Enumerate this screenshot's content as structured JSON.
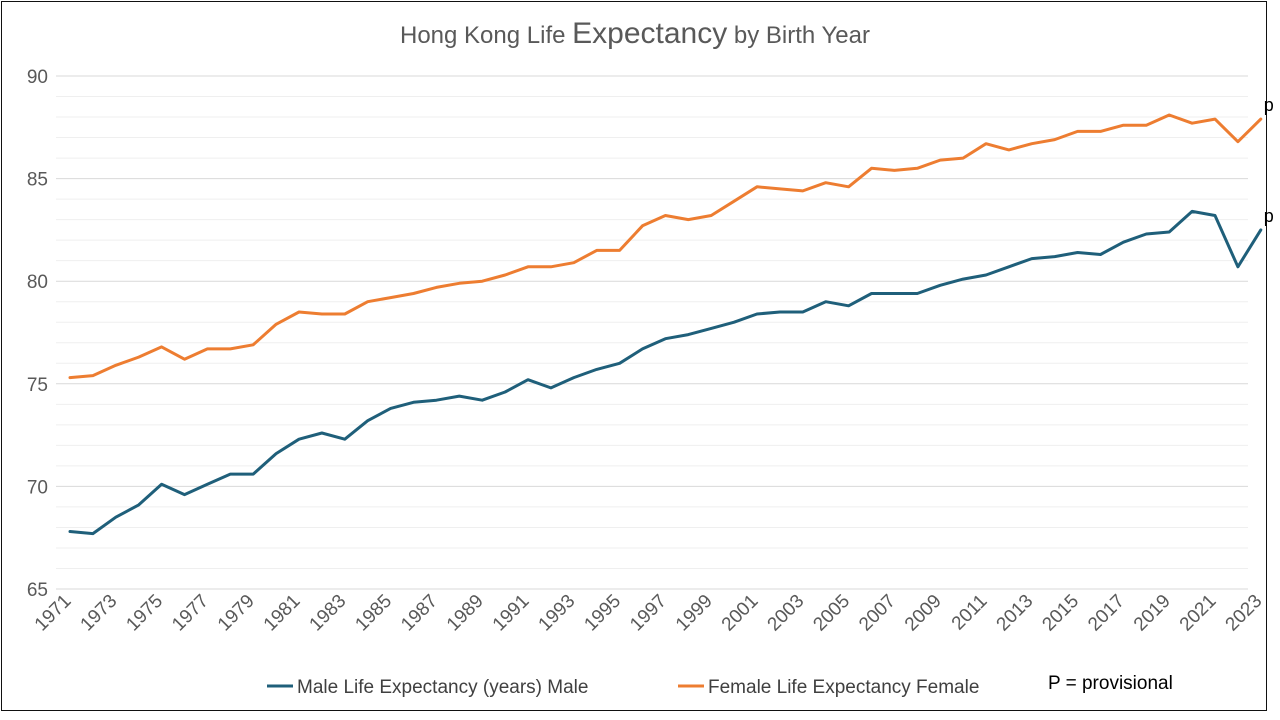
{
  "chart_data": {
    "type": "line",
    "title_parts": [
      "Hong Kong Life ",
      "Expectancy",
      " by Birth Year"
    ],
    "xlabel": "",
    "ylabel": "",
    "ylim": [
      65,
      90
    ],
    "yticks": [
      65,
      70,
      75,
      80,
      85,
      90
    ],
    "minor_grid": true,
    "legend_position": "bottom",
    "note": "P = provisional",
    "x": [
      1971,
      1972,
      1973,
      1974,
      1975,
      1976,
      1977,
      1978,
      1979,
      1980,
      1981,
      1982,
      1983,
      1984,
      1985,
      1986,
      1987,
      1988,
      1989,
      1990,
      1991,
      1992,
      1993,
      1994,
      1995,
      1996,
      1997,
      1998,
      1999,
      2000,
      2001,
      2002,
      2003,
      2004,
      2005,
      2006,
      2007,
      2008,
      2009,
      2010,
      2011,
      2012,
      2013,
      2014,
      2015,
      2016,
      2017,
      2018,
      2019,
      2020,
      2021,
      2022,
      2023
    ],
    "xtick_labels": [
      "1971",
      "1973",
      "1975",
      "1977",
      "1979",
      "1981",
      "1983",
      "1985",
      "1987",
      "1989",
      "1991",
      "1993",
      "1995",
      "1997",
      "1999",
      "2001",
      "2003",
      "2005",
      "2007",
      "2009",
      "2011",
      "2013",
      "2015",
      "2017",
      "2019",
      "2021",
      "2023"
    ],
    "series": [
      {
        "name": "Male Life Expectancy (years) Male",
        "color": "#1f5f7a",
        "values": [
          67.8,
          67.7,
          68.5,
          69.1,
          70.1,
          69.6,
          70.1,
          70.6,
          70.6,
          71.6,
          72.3,
          72.6,
          72.3,
          73.2,
          73.8,
          74.1,
          74.2,
          74.4,
          74.2,
          74.6,
          75.2,
          74.8,
          75.3,
          75.7,
          76.0,
          76.7,
          77.2,
          77.4,
          77.7,
          78.0,
          78.4,
          78.5,
          78.5,
          79.0,
          78.8,
          79.4,
          79.4,
          79.4,
          79.8,
          80.1,
          80.3,
          80.7,
          81.1,
          81.2,
          81.4,
          81.3,
          81.9,
          82.3,
          82.4,
          83.4,
          83.2,
          80.7,
          82.5
        ],
        "end_label": "p"
      },
      {
        "name": "Female Life Expectancy Female",
        "color": "#ed7d31",
        "values": [
          75.3,
          75.4,
          75.9,
          76.3,
          76.8,
          76.2,
          76.7,
          76.7,
          76.9,
          77.9,
          78.5,
          78.4,
          78.4,
          79.0,
          79.2,
          79.4,
          79.7,
          79.9,
          80.0,
          80.3,
          80.7,
          80.7,
          80.9,
          81.5,
          81.5,
          82.7,
          83.2,
          83.0,
          83.2,
          83.9,
          84.6,
          84.5,
          84.4,
          84.8,
          84.6,
          85.5,
          85.4,
          85.5,
          85.9,
          86.0,
          86.7,
          86.4,
          86.7,
          86.9,
          87.3,
          87.3,
          87.6,
          87.6,
          88.1,
          87.7,
          87.9,
          86.8,
          87.9
        ],
        "end_label": "p"
      }
    ]
  }
}
